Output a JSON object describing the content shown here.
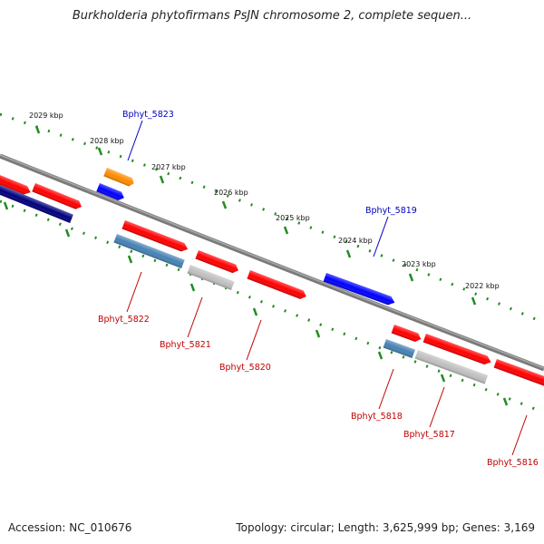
{
  "title": "Burkholderia phytofirmans PsJN chromosome 2, complete sequen...",
  "footer": {
    "accession": "Accession: NC_010676",
    "topology": "Topology: circular; Length: 3,625,999 bp; Genes: 3,169"
  },
  "colors": {
    "backbone": "#808080",
    "scale_ticks": "#228b22",
    "gene_red": "#ff0000",
    "gene_blue": "#0000ff",
    "gene_navy": "#000080",
    "gene_steelblue": "#4682b4",
    "gene_orange": "#ff8c00",
    "gene_grey": "#c0c0c0",
    "label_top": "#0000c0",
    "label_bottom": "#c00000"
  },
  "kbp_marks": [
    "2029 kbp",
    "2028 kbp",
    "2027 kbp",
    "2026 kbp",
    "2025 kbp",
    "2024 kbp",
    "2023 kbp",
    "2022 kbp"
  ],
  "gene_labels_top": [
    "Bphyt_5823",
    "Bphyt_5819"
  ],
  "gene_labels_bottom": [
    "Bphyt_5822",
    "Bphyt_5821",
    "Bphyt_5820",
    "Bphyt_5818",
    "Bphyt_5817",
    "Bphyt_5816"
  ]
}
